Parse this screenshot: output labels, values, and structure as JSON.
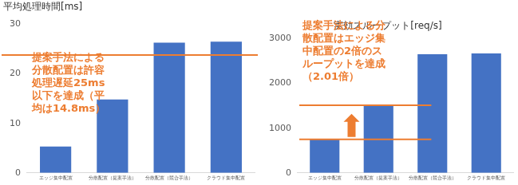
{
  "chart_data": [
    {
      "type": "bar",
      "title": "平均処理時間[ms]",
      "categories": [
        "エッジ集中配置",
        "分散配置（提案手法）",
        "分散配置（競合手法）",
        "クラウド集中配置"
      ],
      "values": [
        5.3,
        14.8,
        26.3,
        26.5
      ],
      "color": "#4472c4",
      "ylim": [
        0,
        30
      ],
      "yticks": [
        0,
        10,
        20,
        30
      ],
      "grid": false,
      "reference_lines": [
        {
          "value": 23.8,
          "color": "#ed7d31"
        }
      ],
      "annotation": {
        "color": "#ed7d31",
        "lines": [
          "提案手法による",
          "分散配置は許容",
          "処理遅延25ms",
          "以下を達成（平",
          "均は14.8ms）"
        ]
      }
    },
    {
      "type": "bar",
      "title": "実効スループット[req/s]",
      "categories": [
        "エッジ集中配置",
        "分散配置（提案手法）",
        "分散配置（競合手法）",
        "クラウド集中配置"
      ],
      "values": [
        750,
        1500,
        2650,
        2670
      ],
      "color": "#4472c4",
      "ylim": [
        0,
        3000
      ],
      "yticks": [
        0,
        1000,
        2000,
        3000
      ],
      "grid": false,
      "reference_lines": [
        {
          "value": 1510,
          "color": "#ed7d31"
        },
        {
          "value": 750,
          "color": "#ed7d31"
        }
      ],
      "annotation": {
        "color": "#ed7d31",
        "lines": [
          "提案手法による分",
          "散配置はエッジ集",
          "中配置の2倍のス",
          "ループットを達成",
          "（2.01倍）"
        ]
      }
    }
  ]
}
